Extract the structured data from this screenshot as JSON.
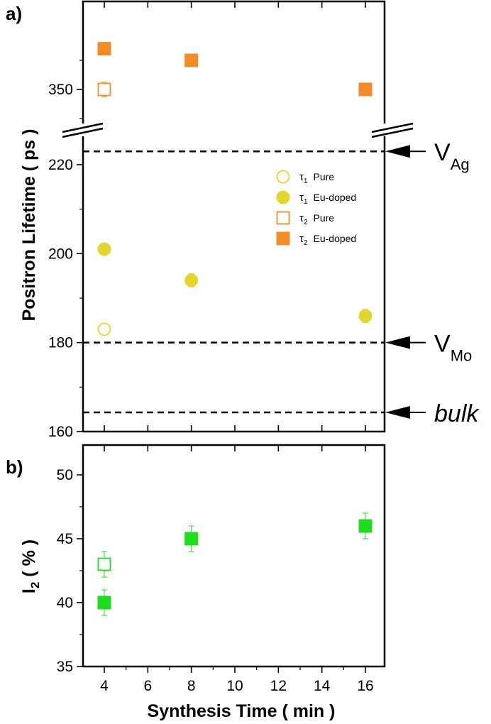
{
  "panels": {
    "a": {
      "label": "a)"
    },
    "b": {
      "label": "b)"
    }
  },
  "axes": {
    "a_ylabel": "Positron Lifetime  ( ps )",
    "b_ylabel_main": "I",
    "b_ylabel_sub": "2",
    "b_ylabel_rest": "  ( % )",
    "xlabel": "Synthesis Time  ( min )"
  },
  "reference_lines": [
    {
      "main": "V",
      "sub": "Ag",
      "italic": false,
      "value": 223
    },
    {
      "main": "V",
      "sub": "Mo",
      "italic": false,
      "value": 180
    },
    {
      "main": "bulk",
      "sub": "",
      "italic": true,
      "value": 164.3
    }
  ],
  "legend": [
    {
      "symbol": "τ",
      "sub": "1",
      "label": "Pure",
      "marker": "circle",
      "filled": false,
      "color": "#e2d62e"
    },
    {
      "symbol": "τ",
      "sub": "1",
      "label": "Eu-doped",
      "marker": "circle",
      "filled": true,
      "color": "#e2d62e"
    },
    {
      "symbol": "τ",
      "sub": "2",
      "label": "Pure",
      "marker": "square",
      "filled": false,
      "color": "#f28c28"
    },
    {
      "symbol": "τ",
      "sub": "2",
      "label": "Eu-doped",
      "marker": "square",
      "filled": true,
      "color": "#f28c28"
    }
  ],
  "colors": {
    "tau1": "#e2d62e",
    "tau2": "#f28c28",
    "i2": "#1fdc1f",
    "axis": "#000000"
  },
  "chart_data": [
    {
      "type": "scatter",
      "panel": "a",
      "ylabel": "Positron Lifetime  ( ps )",
      "x_ticks": [
        4,
        6,
        8,
        10,
        12,
        14,
        16
      ],
      "xlim": [
        3,
        17
      ],
      "y_axis_broken": true,
      "lower_segment": {
        "ylim": [
          160,
          227
        ],
        "ticks": [
          160,
          180,
          200,
          220
        ]
      },
      "upper_segment": {
        "ylim": [
          340,
          370
        ],
        "ticks": [
          350
        ]
      },
      "series": [
        {
          "name": "τ1 Pure",
          "marker": "circle",
          "filled": false,
          "color": "#e2d62e",
          "x": [
            4
          ],
          "y": [
            183
          ],
          "err": [
            0.5
          ]
        },
        {
          "name": "τ1 Eu-doped",
          "marker": "circle",
          "filled": true,
          "color": "#e2d62e",
          "x": [
            4,
            8,
            16
          ],
          "y": [
            201,
            194,
            186
          ],
          "err": [
            0.6,
            1.5,
            1.5
          ]
        },
        {
          "name": "τ2 Pure",
          "marker": "square",
          "filled": false,
          "color": "#f28c28",
          "x": [
            4
          ],
          "y": [
            350
          ],
          "err": [
            2.5
          ]
        },
        {
          "name": "τ2 Eu-doped",
          "marker": "square",
          "filled": true,
          "color": "#f28c28",
          "x": [
            4,
            8,
            16
          ],
          "y": [
            364,
            360,
            350
          ],
          "err": [
            2,
            2,
            1.5
          ]
        }
      ],
      "horizontal_lines": [
        {
          "label": "V_Ag",
          "y": 223
        },
        {
          "label": "V_Mo",
          "y": 180
        },
        {
          "label": "bulk",
          "y": 164.3
        }
      ]
    },
    {
      "type": "scatter",
      "panel": "b",
      "ylabel": "I2  ( % )",
      "xlabel": "Synthesis Time  ( min )",
      "x_ticks": [
        4,
        6,
        8,
        10,
        12,
        14,
        16
      ],
      "xlim": [
        3,
        17
      ],
      "ylim": [
        35,
        52
      ],
      "y_ticks": [
        35,
        40,
        45,
        50
      ],
      "series": [
        {
          "marker": "square",
          "filled": false,
          "color": "#1fdc1f",
          "x": [
            4
          ],
          "y": [
            43
          ],
          "err": [
            1
          ]
        },
        {
          "marker": "square",
          "filled": true,
          "color": "#1fdc1f",
          "x": [
            4,
            8,
            16
          ],
          "y": [
            40,
            45,
            46
          ],
          "err": [
            1,
            1,
            1
          ]
        }
      ]
    }
  ]
}
